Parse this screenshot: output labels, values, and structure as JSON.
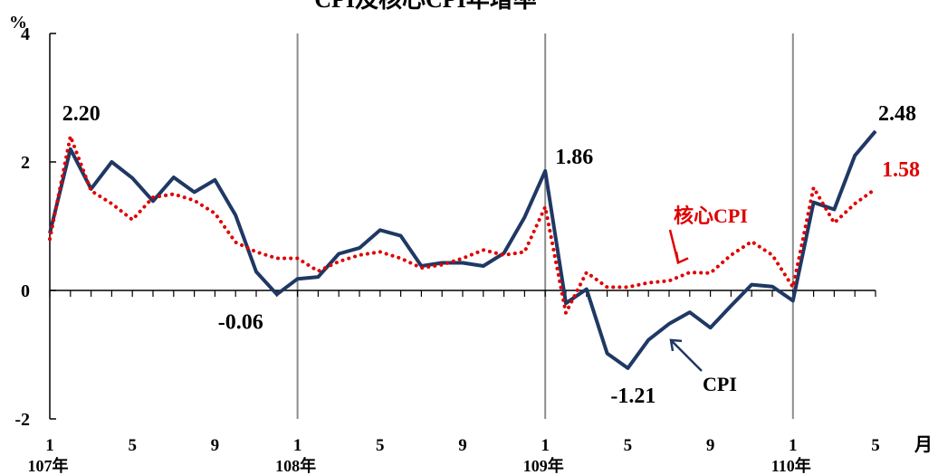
{
  "chart_data": {
    "type": "line",
    "title": "CPI及核心CPI年增率",
    "ylabel": "%",
    "xunit_label": "月",
    "ylim": [
      -2,
      4
    ],
    "yticks": [
      -2,
      0,
      2,
      4
    ],
    "xtick_labels": [
      "1",
      "5",
      "9",
      "1",
      "5",
      "9",
      "1",
      "5",
      "9",
      "1",
      "5"
    ],
    "year_labels": [
      "107年",
      "108年",
      "109年",
      "110年"
    ],
    "months": [
      "107-01",
      "107-02",
      "107-03",
      "107-04",
      "107-05",
      "107-06",
      "107-07",
      "107-08",
      "107-09",
      "107-10",
      "107-11",
      "107-12",
      "108-01",
      "108-02",
      "108-03",
      "108-04",
      "108-05",
      "108-06",
      "108-07",
      "108-08",
      "108-09",
      "108-10",
      "108-11",
      "108-12",
      "109-01",
      "109-02",
      "109-03",
      "109-04",
      "109-05",
      "109-06",
      "109-07",
      "109-08",
      "109-09",
      "109-10",
      "109-11",
      "109-12",
      "110-01",
      "110-02",
      "110-03",
      "110-04",
      "110-05"
    ],
    "series": [
      {
        "name": "CPI",
        "color": "#1f3864",
        "style": "solid",
        "values": [
          0.89,
          2.2,
          1.58,
          2.0,
          1.75,
          1.39,
          1.76,
          1.53,
          1.72,
          1.17,
          0.29,
          -0.06,
          0.18,
          0.21,
          0.57,
          0.66,
          0.94,
          0.85,
          0.38,
          0.43,
          0.43,
          0.38,
          0.58,
          1.14,
          1.86,
          -0.2,
          0.02,
          -0.98,
          -1.21,
          -0.77,
          -0.52,
          -0.34,
          -0.58,
          -0.24,
          0.09,
          0.06,
          -0.16,
          1.37,
          1.26,
          2.1,
          2.48
        ]
      },
      {
        "name": "核心CPI",
        "color": "#e00000",
        "style": "dotted",
        "values": [
          0.8,
          2.4,
          1.55,
          1.35,
          1.1,
          1.45,
          1.5,
          1.4,
          1.2,
          0.75,
          0.6,
          0.5,
          0.5,
          0.3,
          0.45,
          0.55,
          0.6,
          0.5,
          0.35,
          0.4,
          0.5,
          0.63,
          0.55,
          0.6,
          1.3,
          -0.35,
          0.28,
          0.05,
          0.05,
          0.12,
          0.15,
          0.28,
          0.27,
          0.55,
          0.76,
          0.55,
          0.05,
          1.6,
          1.05,
          1.35,
          1.58
        ]
      }
    ],
    "annotations": [
      {
        "text": "2.20",
        "series": "CPI",
        "month": "107-02",
        "color": "#000000"
      },
      {
        "text": "-0.06",
        "series": "CPI",
        "month": "107-12",
        "color": "#000000"
      },
      {
        "text": "1.86",
        "series": "CPI",
        "month": "109-01",
        "color": "#000000"
      },
      {
        "text": "-1.21",
        "series": "CPI",
        "month": "109-05",
        "color": "#000000"
      },
      {
        "text": "2.48",
        "series": "CPI",
        "month": "110-05",
        "color": "#000000"
      },
      {
        "text": "1.58",
        "series": "核心CPI",
        "month": "110-05",
        "color": "#e00000"
      },
      {
        "text": "核心CPI",
        "series": "核心CPI",
        "month": "109-07",
        "color": "#e00000",
        "arrow": true
      },
      {
        "text": "CPI",
        "series": "CPI",
        "month": "109-07",
        "color": "#000000",
        "arrow": true
      }
    ],
    "grid": "vertical lines at January of each year",
    "legend": "none"
  }
}
